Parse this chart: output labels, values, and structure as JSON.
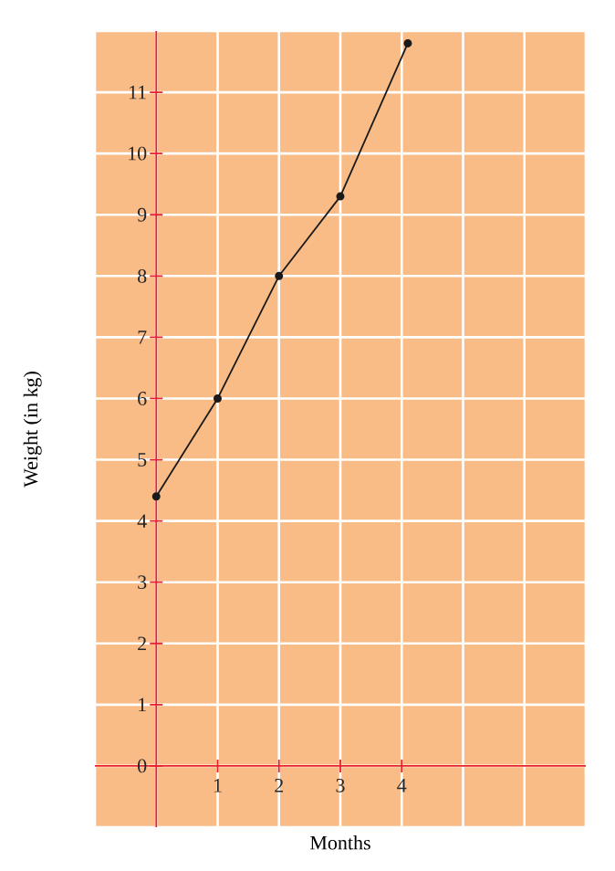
{
  "chart_data": {
    "type": "line",
    "xlabel": "Months",
    "ylabel": "Weight (in kg)",
    "x": [
      0,
      1,
      2,
      3,
      4.1
    ],
    "series": [
      {
        "color": "#1a1a1a",
        "values": [
          4.4,
          6,
          8,
          9.3,
          11.8
        ]
      }
    ],
    "xlim": [
      -1,
      7
    ],
    "ylim": [
      -1,
      12
    ],
    "xticks": [
      {
        "value": -1,
        "label": null
      },
      {
        "value": 0,
        "label": null
      },
      1,
      2,
      3,
      4,
      {
        "value": 5,
        "label": null
      },
      {
        "value": 6,
        "label": null
      },
      {
        "value": 7,
        "label": null
      }
    ],
    "yticks": [
      {
        "value": -1,
        "label": null
      },
      0,
      1,
      2,
      3,
      4,
      5,
      6,
      7,
      8,
      9,
      10,
      11,
      {
        "value": 12,
        "label": null
      }
    ],
    "grid": true,
    "marker": "circle",
    "line_style": "solid"
  }
}
